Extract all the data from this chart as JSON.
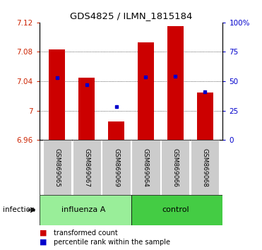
{
  "title": "GDS4825 / ILMN_1815184",
  "samples": [
    "GSM869065",
    "GSM869067",
    "GSM869069",
    "GSM869064",
    "GSM869066",
    "GSM869068"
  ],
  "group_label": "infection",
  "ylim_left": [
    6.96,
    7.12
  ],
  "ylim_right": [
    0,
    100
  ],
  "yticks_left": [
    6.96,
    7.0,
    7.04,
    7.08,
    7.12
  ],
  "ytick_labels_left": [
    "6.96",
    "7",
    "7.04",
    "7.08",
    "7.12"
  ],
  "yticks_right": [
    0,
    25,
    50,
    75,
    100
  ],
  "ytick_labels_right": [
    "0",
    "25",
    "50",
    "75",
    "100%"
  ],
  "bar_bottoms": [
    6.96,
    6.96,
    6.96,
    6.96,
    6.96,
    6.96
  ],
  "bar_tops": [
    7.083,
    7.045,
    6.985,
    7.093,
    7.115,
    7.025
  ],
  "bar_color": "#cc0000",
  "percentile_values": [
    7.045,
    7.035,
    7.005,
    7.046,
    7.047,
    7.026
  ],
  "percentile_color": "#0000cc",
  "gridlines": [
    7.0,
    7.04,
    7.08
  ],
  "group1_label": "influenza A",
  "group2_label": "control",
  "group1_color": "#99ee99",
  "group2_color": "#44cc44",
  "sample_box_color": "#cccccc",
  "tick_label_color_left": "#cc2200",
  "tick_label_color_right": "#0000cc",
  "bar_width": 0.55,
  "legend_bar_color": "#cc0000",
  "legend_percentile_color": "#0000cc",
  "title_fontsize": 9.5
}
